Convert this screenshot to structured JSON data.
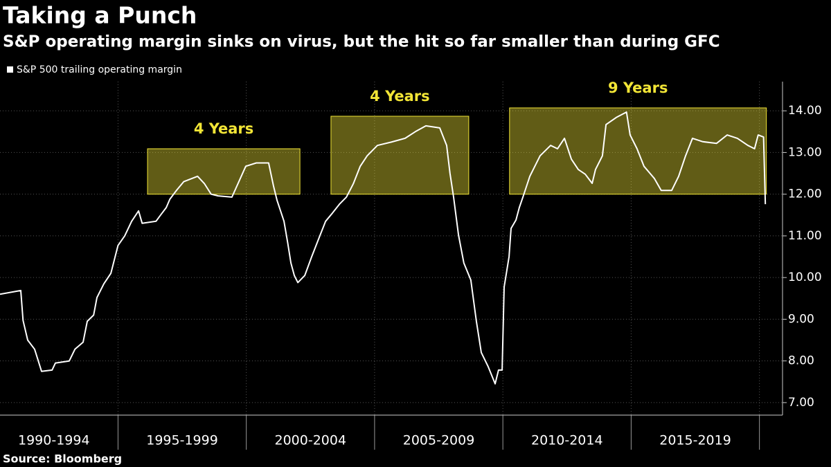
{
  "chart_data": {
    "type": "line",
    "title": "Taking a Punch",
    "subtitle": "S&P operating margin sinks on virus, but the hit so far smaller than during GFC",
    "source": "Source: Bloomberg",
    "x": [
      1990.4,
      1991.21,
      1991.3,
      1991.48,
      1991.75,
      1992.02,
      1992.43,
      1992.56,
      1993.1,
      1993.32,
      1993.64,
      1993.8,
      1994.05,
      1994.18,
      1994.45,
      1994.72,
      1995.0,
      1995.26,
      1995.53,
      1995.8,
      1995.94,
      1996.48,
      1996.66,
      1996.88,
      1997.02,
      1997.29,
      1997.56,
      1998.1,
      1998.37,
      1998.63,
      1998.9,
      1999.44,
      1999.71,
      1999.98,
      2000.39,
      2000.87,
      2001.06,
      2001.2,
      2001.47,
      2001.61,
      2001.74,
      2001.87,
      2002.01,
      2002.28,
      2002.55,
      2002.82,
      2003.09,
      2003.36,
      2003.63,
      2003.9,
      2004.17,
      2004.44,
      2004.71,
      2005.11,
      2005.65,
      2006.19,
      2006.59,
      2007.0,
      2007.54,
      2007.81,
      2007.94,
      2008.08,
      2008.27,
      2008.48,
      2008.75,
      2008.97,
      2009.16,
      2009.43,
      2009.7,
      2009.83,
      2009.97,
      2010.05,
      2010.24,
      2010.32,
      2010.51,
      2010.64,
      2010.78,
      2011.05,
      2011.45,
      2011.86,
      2012.13,
      2012.4,
      2012.67,
      2012.94,
      2013.21,
      2013.48,
      2013.61,
      2013.88,
      2014.02,
      2014.42,
      2014.82,
      2014.96,
      2015.23,
      2015.5,
      2015.9,
      2016.17,
      2016.58,
      2016.85,
      2017.12,
      2017.39,
      2017.79,
      2018.33,
      2018.74,
      2019.14,
      2019.55,
      2019.81,
      2019.95,
      2020.16,
      2020.23
    ],
    "series": [
      {
        "name": "S&P 500 trailing operating margin",
        "color": "#ffffff",
        "values": [
          9.6,
          9.69,
          8.97,
          8.5,
          8.28,
          7.75,
          7.78,
          7.95,
          8.0,
          8.28,
          8.45,
          8.95,
          9.1,
          9.52,
          9.85,
          10.1,
          10.77,
          11.0,
          11.35,
          11.6,
          11.3,
          11.35,
          11.5,
          11.68,
          11.88,
          12.1,
          12.3,
          12.43,
          12.25,
          12.0,
          11.96,
          11.93,
          12.3,
          12.67,
          12.75,
          12.75,
          12.2,
          11.85,
          11.35,
          10.85,
          10.35,
          10.05,
          9.88,
          10.05,
          10.5,
          10.93,
          11.35,
          11.55,
          11.76,
          11.93,
          12.25,
          12.67,
          12.92,
          13.17,
          13.25,
          13.34,
          13.5,
          13.64,
          13.59,
          13.17,
          12.5,
          11.93,
          11.02,
          10.35,
          9.94,
          8.94,
          8.2,
          7.86,
          7.45,
          7.78,
          7.78,
          9.77,
          10.5,
          11.18,
          11.38,
          11.68,
          11.93,
          12.43,
          12.92,
          13.17,
          13.09,
          13.34,
          12.84,
          12.59,
          12.48,
          12.26,
          12.59,
          12.92,
          13.67,
          13.84,
          13.97,
          13.42,
          13.09,
          12.67,
          12.38,
          12.09,
          12.09,
          12.43,
          12.92,
          13.34,
          13.26,
          13.22,
          13.42,
          13.34,
          13.17,
          13.09,
          13.42,
          13.37,
          11.76
        ]
      }
    ],
    "xlim": [
      1990.4,
      2020.9
    ],
    "xticks": [
      {
        "value": 1992.5,
        "label": "1990-1994"
      },
      {
        "value": 1997.5,
        "label": "1995-1999"
      },
      {
        "value": 2002.5,
        "label": "2000-2004"
      },
      {
        "value": 2007.5,
        "label": "2005-2009"
      },
      {
        "value": 2012.5,
        "label": "2010-2014"
      },
      {
        "value": 2017.5,
        "label": "2015-2019"
      }
    ],
    "xgrid": [
      1995,
      2000,
      2005,
      2010,
      2015,
      2020
    ],
    "ylim": [
      6.7,
      14.7
    ],
    "yticks": [
      {
        "value": 7,
        "label": "7.00"
      },
      {
        "value": 8,
        "label": "8.00"
      },
      {
        "value": 9,
        "label": "9.00"
      },
      {
        "value": 10,
        "label": "10.00"
      },
      {
        "value": 11,
        "label": "11.00"
      },
      {
        "value": 12,
        "label": "12.00"
      },
      {
        "value": 13,
        "label": "13.00"
      },
      {
        "value": 14,
        "label": "14.00"
      }
    ],
    "grid": true,
    "annotations": [
      {
        "label": "4 Years",
        "x0": 1996.15,
        "x1": 2002.09,
        "y0": 12.0,
        "y1": 13.09,
        "color": "#f2e536"
      },
      {
        "label": "4 Years",
        "x0": 2003.3,
        "x1": 2008.67,
        "y0": 12.0,
        "y1": 13.87,
        "color": "#f2e536"
      },
      {
        "label": "9 Years",
        "x0": 2010.26,
        "x1": 2020.27,
        "y0": 12.0,
        "y1": 14.07,
        "color": "#f2e536"
      }
    ]
  }
}
